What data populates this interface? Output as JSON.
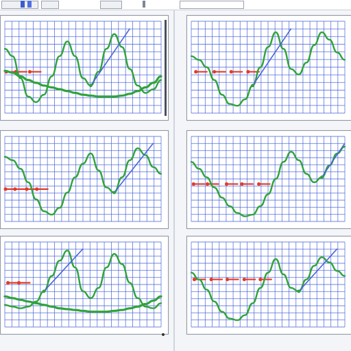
{
  "theme": {
    "grid_color": "#3f5bd6",
    "green_curve": "#2fa33a",
    "red_marker": "#e23b2a",
    "blue_line": "#4a63d8",
    "panel_bg": "#ffffff"
  },
  "chart_data": [
    {
      "type": "line",
      "grid": true,
      "x": [
        0,
        1,
        2,
        3,
        4,
        5,
        6,
        7,
        8,
        9,
        10,
        11,
        12,
        13,
        14,
        15,
        16,
        17,
        18,
        19,
        20
      ],
      "series": [
        {
          "values": [
            0.7,
            0.62,
            0.38,
            0.18,
            0.12,
            0.2,
            0.4,
            0.62,
            0.78,
            0.62,
            0.38,
            0.3,
            0.45,
            0.7,
            0.86,
            0.72,
            0.48,
            0.3,
            0.22,
            0.26,
            0.36
          ]
        },
        {
          "values": [
            0.46,
            0.44,
            0.4,
            0.36,
            0.33,
            0.3,
            0.28,
            0.26,
            0.24,
            0.22,
            0.2,
            0.19,
            0.18,
            0.18,
            0.18,
            0.19,
            0.21,
            0.24,
            0.28,
            0.33,
            0.4
          ]
        }
      ],
      "markers": [
        {
          "x": 0.2,
          "y": 0.45
        },
        {
          "x": 1.4,
          "y": 0.45
        },
        {
          "x": 3.2,
          "y": 0.45
        }
      ]
    },
    {
      "type": "line",
      "grid": true,
      "x": [
        0,
        1,
        2,
        3,
        4,
        5,
        6,
        7,
        8,
        9,
        10,
        11,
        12,
        13,
        14,
        15,
        16,
        17,
        18,
        19,
        20
      ],
      "series": [
        {
          "values": [
            0.62,
            0.58,
            0.5,
            0.36,
            0.2,
            0.1,
            0.08,
            0.15,
            0.3,
            0.5,
            0.72,
            0.88,
            0.7,
            0.48,
            0.42,
            0.55,
            0.74,
            0.88,
            0.8,
            0.66,
            0.58
          ]
        }
      ],
      "markers": [
        {
          "x": 0.6,
          "y": 0.45
        },
        {
          "x": 3.0,
          "y": 0.45
        },
        {
          "x": 5.2,
          "y": 0.45
        },
        {
          "x": 7.4,
          "y": 0.45
        }
      ]
    },
    {
      "type": "line",
      "grid": true,
      "x": [
        0,
        1,
        2,
        3,
        4,
        5,
        6,
        7,
        8,
        9,
        10,
        11,
        12,
        13,
        14,
        15,
        16,
        17,
        18,
        19,
        20
      ],
      "series": [
        {
          "values": [
            0.76,
            0.72,
            0.62,
            0.46,
            0.26,
            0.12,
            0.08,
            0.16,
            0.34,
            0.52,
            0.68,
            0.8,
            0.6,
            0.4,
            0.34,
            0.52,
            0.72,
            0.86,
            0.78,
            0.64,
            0.56
          ]
        }
      ],
      "markers": [
        {
          "x": 0.1,
          "y": 0.38
        },
        {
          "x": 1.3,
          "y": 0.38
        },
        {
          "x": 2.8,
          "y": 0.38
        },
        {
          "x": 4.1,
          "y": 0.38
        }
      ]
    },
    {
      "type": "line",
      "grid": true,
      "x": [
        0,
        1,
        2,
        3,
        4,
        5,
        6,
        7,
        8,
        9,
        10,
        11,
        12,
        13,
        14,
        15,
        16,
        17,
        18,
        19,
        20
      ],
      "series": [
        {
          "values": [
            0.7,
            0.62,
            0.52,
            0.4,
            0.28,
            0.18,
            0.1,
            0.06,
            0.08,
            0.18,
            0.32,
            0.5,
            0.7,
            0.82,
            0.72,
            0.56,
            0.46,
            0.52,
            0.66,
            0.8,
            0.88
          ]
        }
      ],
      "markers": [
        {
          "x": 0.3,
          "y": 0.44
        },
        {
          "x": 2.1,
          "y": 0.44
        },
        {
          "x": 4.6,
          "y": 0.44
        },
        {
          "x": 6.6,
          "y": 0.44
        },
        {
          "x": 8.8,
          "y": 0.44
        }
      ]
    },
    {
      "type": "line",
      "grid": true,
      "x": [
        0,
        1,
        2,
        3,
        4,
        5,
        6,
        7,
        8,
        9,
        10,
        11,
        12,
        13,
        14,
        15,
        16,
        17,
        18,
        19,
        20
      ],
      "series": [
        {
          "values": [
            0.26,
            0.24,
            0.22,
            0.24,
            0.3,
            0.42,
            0.6,
            0.78,
            0.9,
            0.7,
            0.42,
            0.34,
            0.46,
            0.7,
            0.86,
            0.74,
            0.52,
            0.34,
            0.24,
            0.22,
            0.28
          ]
        },
        {
          "values": [
            0.36,
            0.34,
            0.32,
            0.3,
            0.28,
            0.26,
            0.24,
            0.22,
            0.21,
            0.2,
            0.19,
            0.18,
            0.18,
            0.18,
            0.19,
            0.2,
            0.22,
            0.24,
            0.27,
            0.31,
            0.36
          ]
        }
      ],
      "markers": [
        {
          "x": 0.4,
          "y": 0.52
        },
        {
          "x": 1.8,
          "y": 0.52
        }
      ]
    },
    {
      "type": "line",
      "grid": true,
      "x": [
        0,
        1,
        2,
        3,
        4,
        5,
        6,
        7,
        8,
        9,
        10,
        11,
        12,
        13,
        14,
        15,
        16,
        17,
        18,
        19,
        20
      ],
      "series": [
        {
          "values": [
            0.64,
            0.56,
            0.44,
            0.3,
            0.18,
            0.1,
            0.08,
            0.14,
            0.28,
            0.46,
            0.64,
            0.8,
            0.62,
            0.46,
            0.42,
            0.56,
            0.72,
            0.82,
            0.76,
            0.66,
            0.6
          ]
        }
      ],
      "markers": [
        {
          "x": 0.4,
          "y": 0.56
        },
        {
          "x": 2.6,
          "y": 0.56
        },
        {
          "x": 4.7,
          "y": 0.56
        },
        {
          "x": 6.9,
          "y": 0.56
        },
        {
          "x": 9.0,
          "y": 0.56
        }
      ]
    }
  ]
}
